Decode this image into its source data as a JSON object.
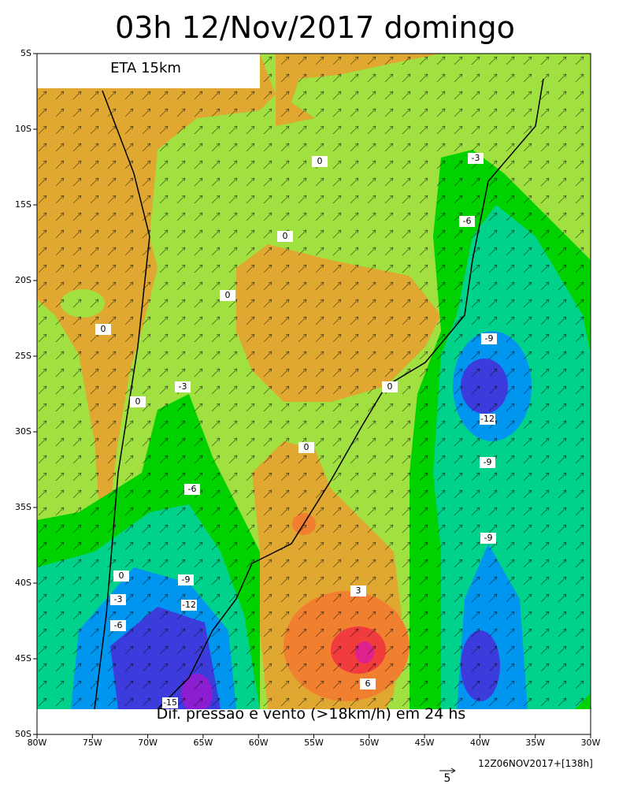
{
  "map": {
    "title": "03h 12/Nov/2017 domingo",
    "model": "ETA 15km",
    "caption": "Dif. pressao e vento (>18km/h) em 24 hs",
    "run": "12Z06NOV2017+[138h]",
    "vector_scale": "5",
    "lat_labels": [
      "5S",
      "10S",
      "15S",
      "20S",
      "25S",
      "30S",
      "35S",
      "40S",
      "45S",
      "50S"
    ],
    "lon_labels": [
      "80W",
      "75W",
      "70W",
      "65W",
      "60W",
      "55W",
      "50W",
      "45W",
      "40W",
      "35W",
      "30W"
    ],
    "contour_labels": [
      "0",
      "0",
      "0",
      "0",
      "0",
      "0",
      "0",
      "0",
      "-3",
      "-3",
      "-3",
      "3",
      "-6",
      "-6",
      "-6",
      "6",
      "-9",
      "-9",
      "-9",
      "-9",
      "-12",
      "-12",
      "-15"
    ]
  }
}
